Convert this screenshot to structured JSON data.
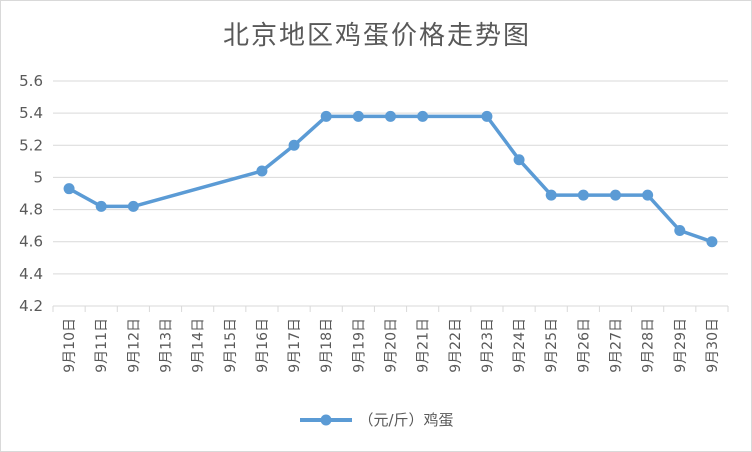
{
  "chart_data": {
    "type": "line",
    "title": "北京地区鸡蛋价格走势图",
    "xlabel": "",
    "ylabel": "",
    "categories": [
      "9月10日",
      "9月11日",
      "9月12日",
      "9月13日",
      "9月14日",
      "9月15日",
      "9月16日",
      "9月17日",
      "9月18日",
      "9月19日",
      "9月20日",
      "9月21日",
      "9月22日",
      "9月23日",
      "9月24日",
      "9月25日",
      "9月26日",
      "9月27日",
      "9月28日",
      "9月29日",
      "9月30日"
    ],
    "series": [
      {
        "name": "（元/斤）鸡蛋",
        "color": "#5b9bd5",
        "values": [
          4.93,
          4.82,
          4.82,
          null,
          null,
          null,
          5.04,
          5.2,
          5.38,
          5.38,
          5.38,
          5.38,
          null,
          5.38,
          5.11,
          4.89,
          4.89,
          4.89,
          4.89,
          4.67,
          4.6
        ]
      }
    ],
    "ylim": [
      4.2,
      5.6
    ],
    "yticks": [
      "4.2",
      "4.4",
      "4.6",
      "4.8",
      "5",
      "5.2",
      "5.4",
      "5.6"
    ],
    "grid": true,
    "legend_position": "bottom"
  }
}
